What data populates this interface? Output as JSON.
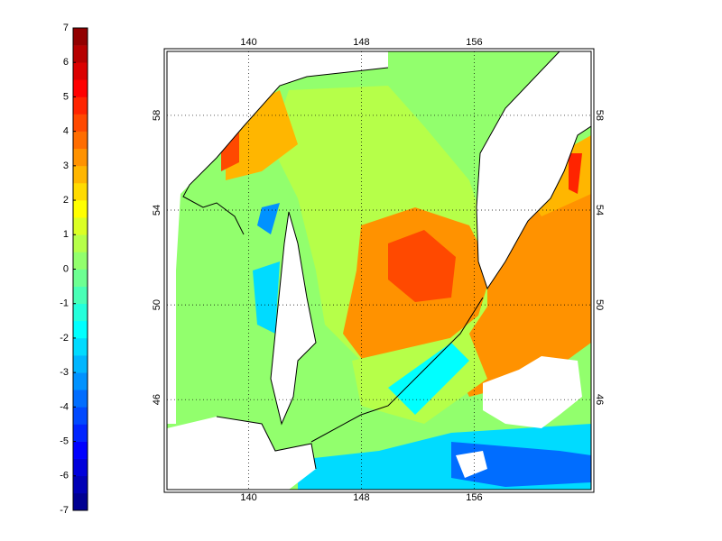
{
  "colorbar": {
    "clim": [
      -7,
      7
    ],
    "ticks": [
      -7,
      -6,
      -5,
      -4,
      -3,
      -2,
      -1,
      0,
      1,
      2,
      3,
      4,
      5,
      6,
      7
    ],
    "colors": [
      "#000092",
      "#0000b6",
      "#0000db",
      "#0000ff",
      "#0024ff",
      "#0049ff",
      "#006dff",
      "#0092ff",
      "#00b6ff",
      "#00dbff",
      "#00ffff",
      "#24ffdb",
      "#49ffb6",
      "#6dff92",
      "#92ff6d",
      "#b6ff49",
      "#dbff24",
      "#ffff00",
      "#ffdb00",
      "#ffb600",
      "#ff9200",
      "#ff6d00",
      "#ff4900",
      "#ff2400",
      "#ff0000",
      "#db0000",
      "#b60000",
      "#920000"
    ]
  },
  "map": {
    "xlim": [
      134.2,
      164.3
    ],
    "xticks": [
      140,
      148,
      156
    ],
    "ylim": [
      42.2,
      60.7
    ],
    "yticks": [
      46,
      50,
      54,
      58
    ],
    "grid": true
  }
}
